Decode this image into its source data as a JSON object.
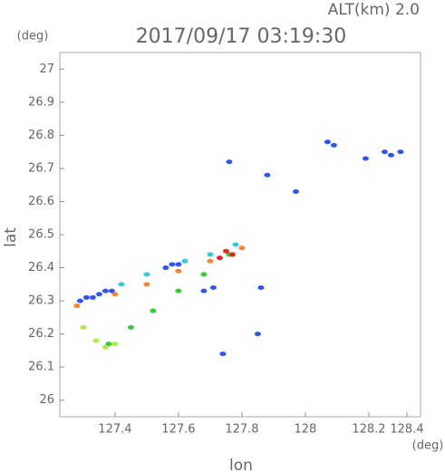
{
  "chart_data": {
    "type": "scatter",
    "title": "2017/09/17 03:19:30",
    "subtitle": "ALT(km) 2.0",
    "y_unit": "(deg)",
    "x_unit": "(deg)",
    "y_label": "lat",
    "x_label": "lon",
    "xlim": [
      127.226,
      128.363
    ],
    "ylim": [
      25.95,
      27.05
    ],
    "xticks": [
      127.4,
      127.6,
      127.8,
      128.0,
      128.2,
      128.4
    ],
    "yticks": [
      26.0,
      26.1,
      26.2,
      26.3,
      26.4,
      26.5,
      26.6,
      26.7,
      26.8,
      26.9,
      27.0
    ],
    "series": [
      {
        "color": "#3355ee",
        "x": [
          127.29,
          127.31,
          127.33,
          127.35,
          127.37,
          127.39,
          127.56,
          127.58,
          127.6,
          127.76,
          127.88,
          127.97,
          128.07,
          128.09,
          128.19,
          128.25,
          128.27,
          128.3,
          127.68,
          127.71,
          127.86,
          127.85,
          127.74
        ],
        "values": [
          26.3,
          26.31,
          26.31,
          26.32,
          26.33,
          26.33,
          26.4,
          26.41,
          26.41,
          26.72,
          26.68,
          26.63,
          26.78,
          26.77,
          26.73,
          26.75,
          26.74,
          26.75,
          26.33,
          26.34,
          26.34,
          26.2,
          26.14
        ]
      },
      {
        "color": "#33ccdd",
        "x": [
          127.42,
          127.5,
          127.62,
          127.7,
          127.78
        ],
        "values": [
          26.35,
          26.38,
          26.42,
          26.44,
          26.47
        ]
      },
      {
        "color": "#33cc33",
        "x": [
          127.38,
          127.45,
          127.52,
          127.6,
          127.68,
          127.76
        ],
        "values": [
          26.17,
          26.22,
          26.27,
          26.33,
          26.38,
          26.44
        ]
      },
      {
        "color": "#aaee44",
        "x": [
          127.3,
          127.34,
          127.37,
          127.4
        ],
        "values": [
          26.22,
          26.18,
          26.16,
          26.17
        ]
      },
      {
        "color": "#ee8833",
        "x": [
          127.28,
          127.4,
          127.5,
          127.6,
          127.7,
          127.8
        ],
        "values": [
          26.285,
          26.32,
          26.35,
          26.39,
          26.42,
          26.46
        ]
      },
      {
        "color": "#ee2222",
        "x": [
          127.73,
          127.75,
          127.77
        ],
        "values": [
          26.43,
          26.45,
          26.44
        ]
      }
    ]
  }
}
